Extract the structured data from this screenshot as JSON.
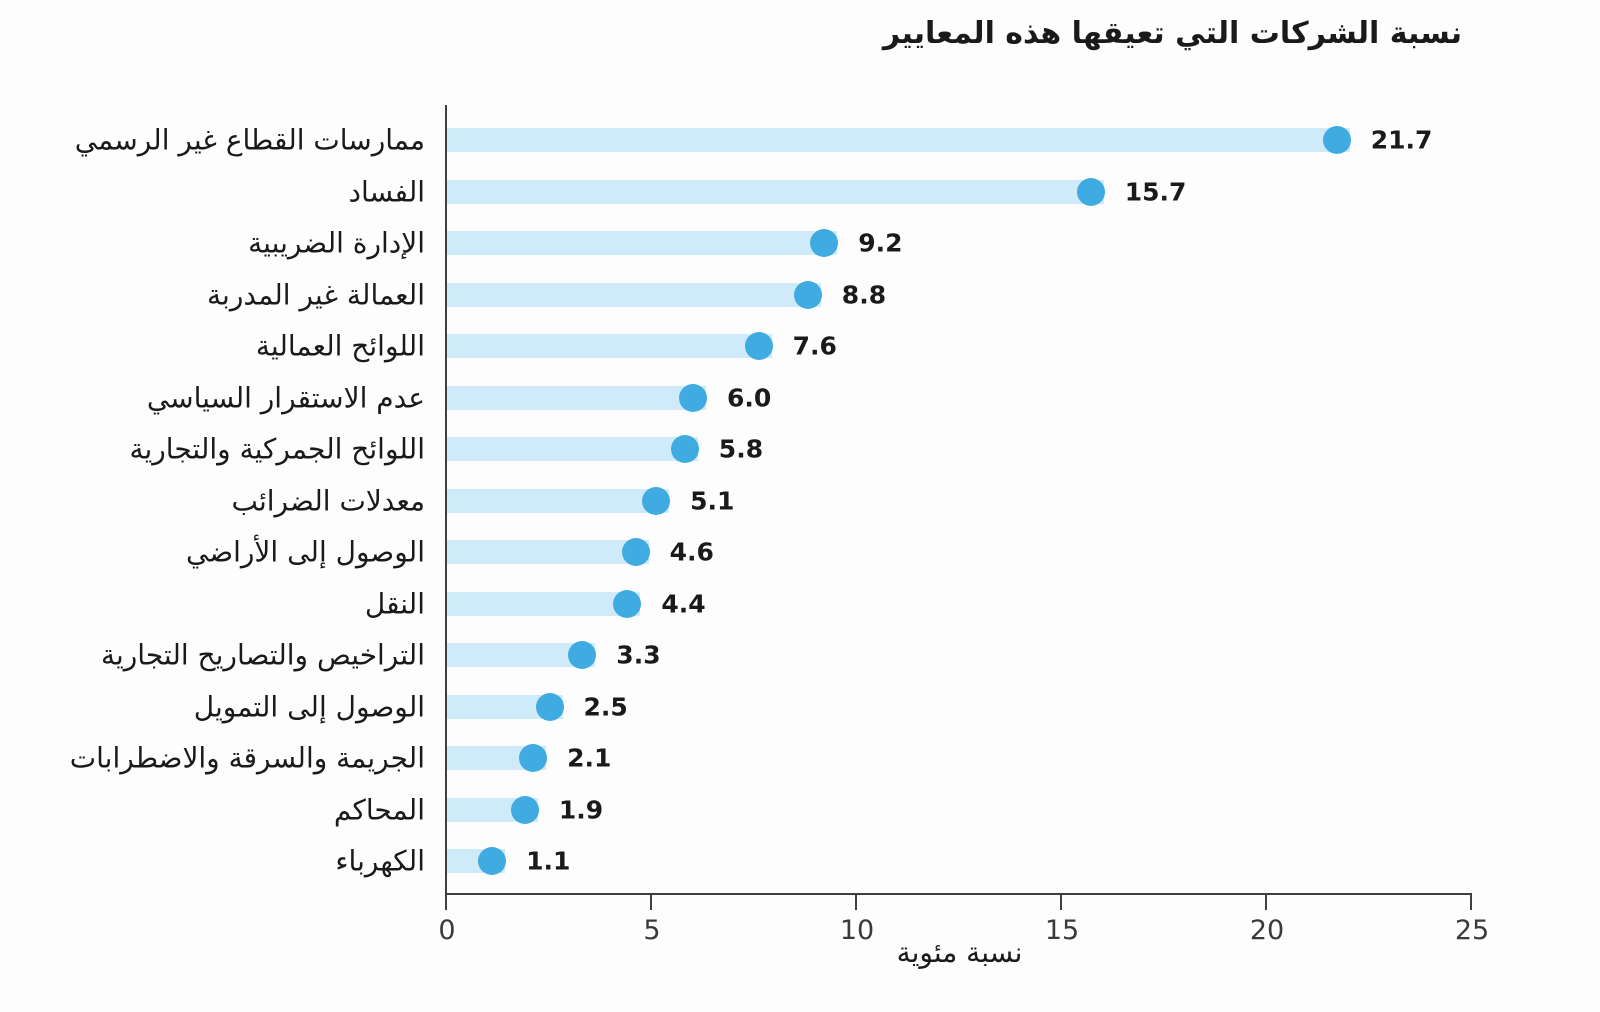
{
  "chart_data": {
    "type": "bar",
    "orientation": "horizontal",
    "style": "lollipop",
    "title": "نسبة الشركات التي تعيقها هذه المعايير",
    "xlabel": "نسبة مئوية",
    "xlim": [
      0,
      25
    ],
    "xticks": [
      "0",
      "5",
      "10",
      "15",
      "20",
      "25"
    ],
    "grid": false,
    "legend_position": "none",
    "categories": [
      "ممارسات القطاع غير الرسمي",
      "الفساد",
      "الإدارة الضريبية",
      "العمالة غير المدربة",
      "اللوائح العمالية",
      "عدم الاستقرار السياسي",
      "اللوائح الجمركية والتجارية",
      "معدلات الضرائب",
      "الوصول إلى الأراضي",
      "النقل",
      "التراخيص والتصاريح التجارية",
      "الوصول إلى التمويل",
      "الجريمة والسرقة والاضطرابات",
      "المحاكم",
      "الكهرباء"
    ],
    "values": [
      21.7,
      15.7,
      9.2,
      8.8,
      7.6,
      6.0,
      5.8,
      5.1,
      4.6,
      4.4,
      3.3,
      2.5,
      2.1,
      1.9,
      1.1
    ],
    "value_labels": [
      "21.7",
      "15.7",
      "9.2",
      "8.8",
      "7.6",
      "6.0",
      "5.8",
      "5.1",
      "4.6",
      "4.4",
      "3.3",
      "2.5",
      "2.1",
      "1.9",
      "1.1"
    ],
    "colors": {
      "bar": "#cfeaf8",
      "dot": "#3fabe0",
      "axis": "#3f3f3f",
      "label_text": "#1a1a1a",
      "tick_text": "#3a3a3a",
      "background": "#fdfdfd"
    }
  }
}
